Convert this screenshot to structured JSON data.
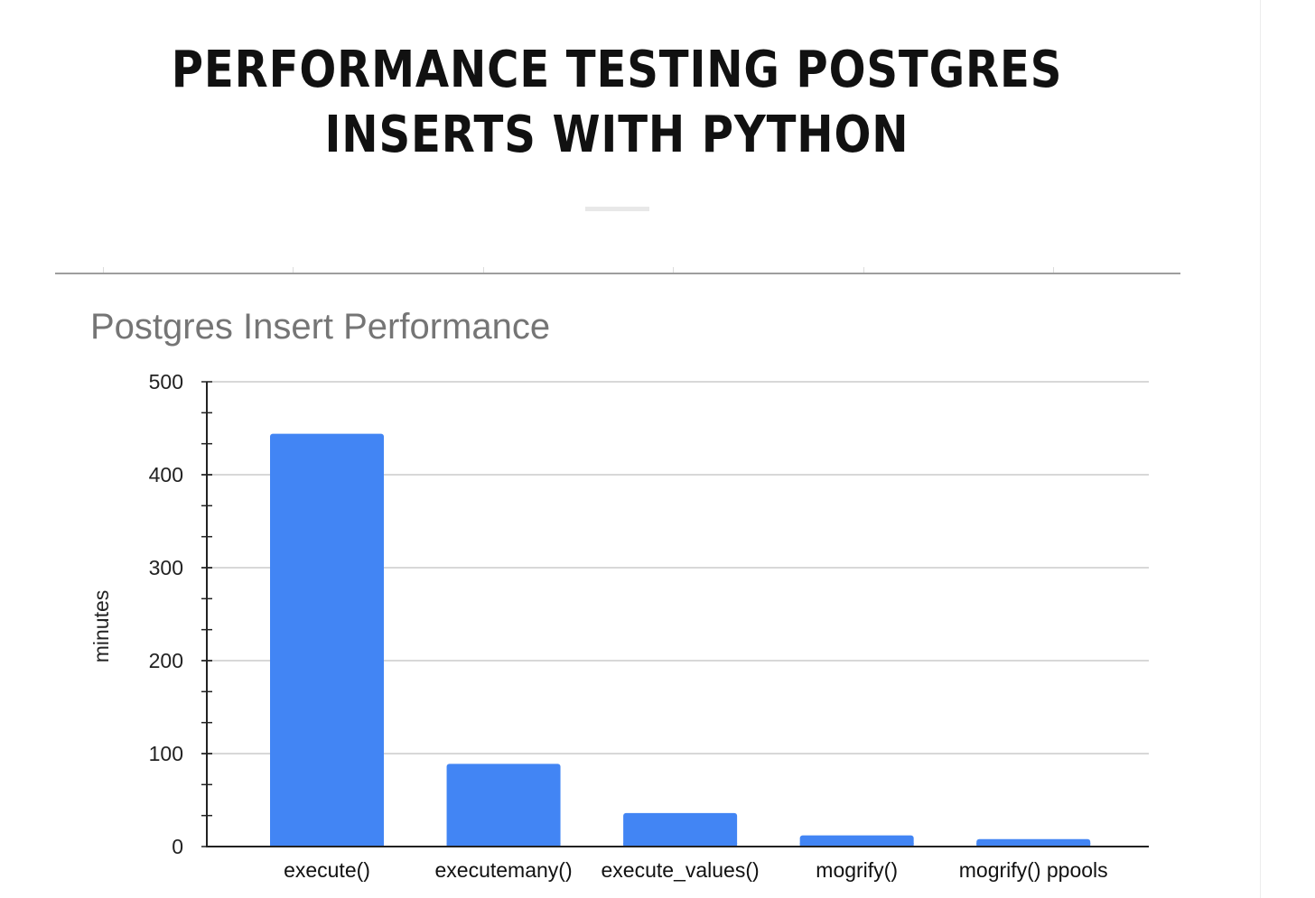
{
  "article": {
    "title": "Performance Testing Postgres Inserts With Python"
  },
  "chart_data": {
    "type": "bar",
    "title": "Postgres Insert Performance",
    "xlabel": "",
    "ylabel": "minutes",
    "categories": [
      "execute()",
      "executemany()",
      "execute_values()",
      "mogrify()",
      "mogrify() ppools"
    ],
    "values": [
      444,
      89,
      36,
      12,
      8
    ],
    "ylim": [
      0,
      500
    ],
    "yticks": [
      0,
      100,
      200,
      300,
      400,
      500
    ],
    "grid": true,
    "legend": "none",
    "bar_color": "#4285F4"
  }
}
